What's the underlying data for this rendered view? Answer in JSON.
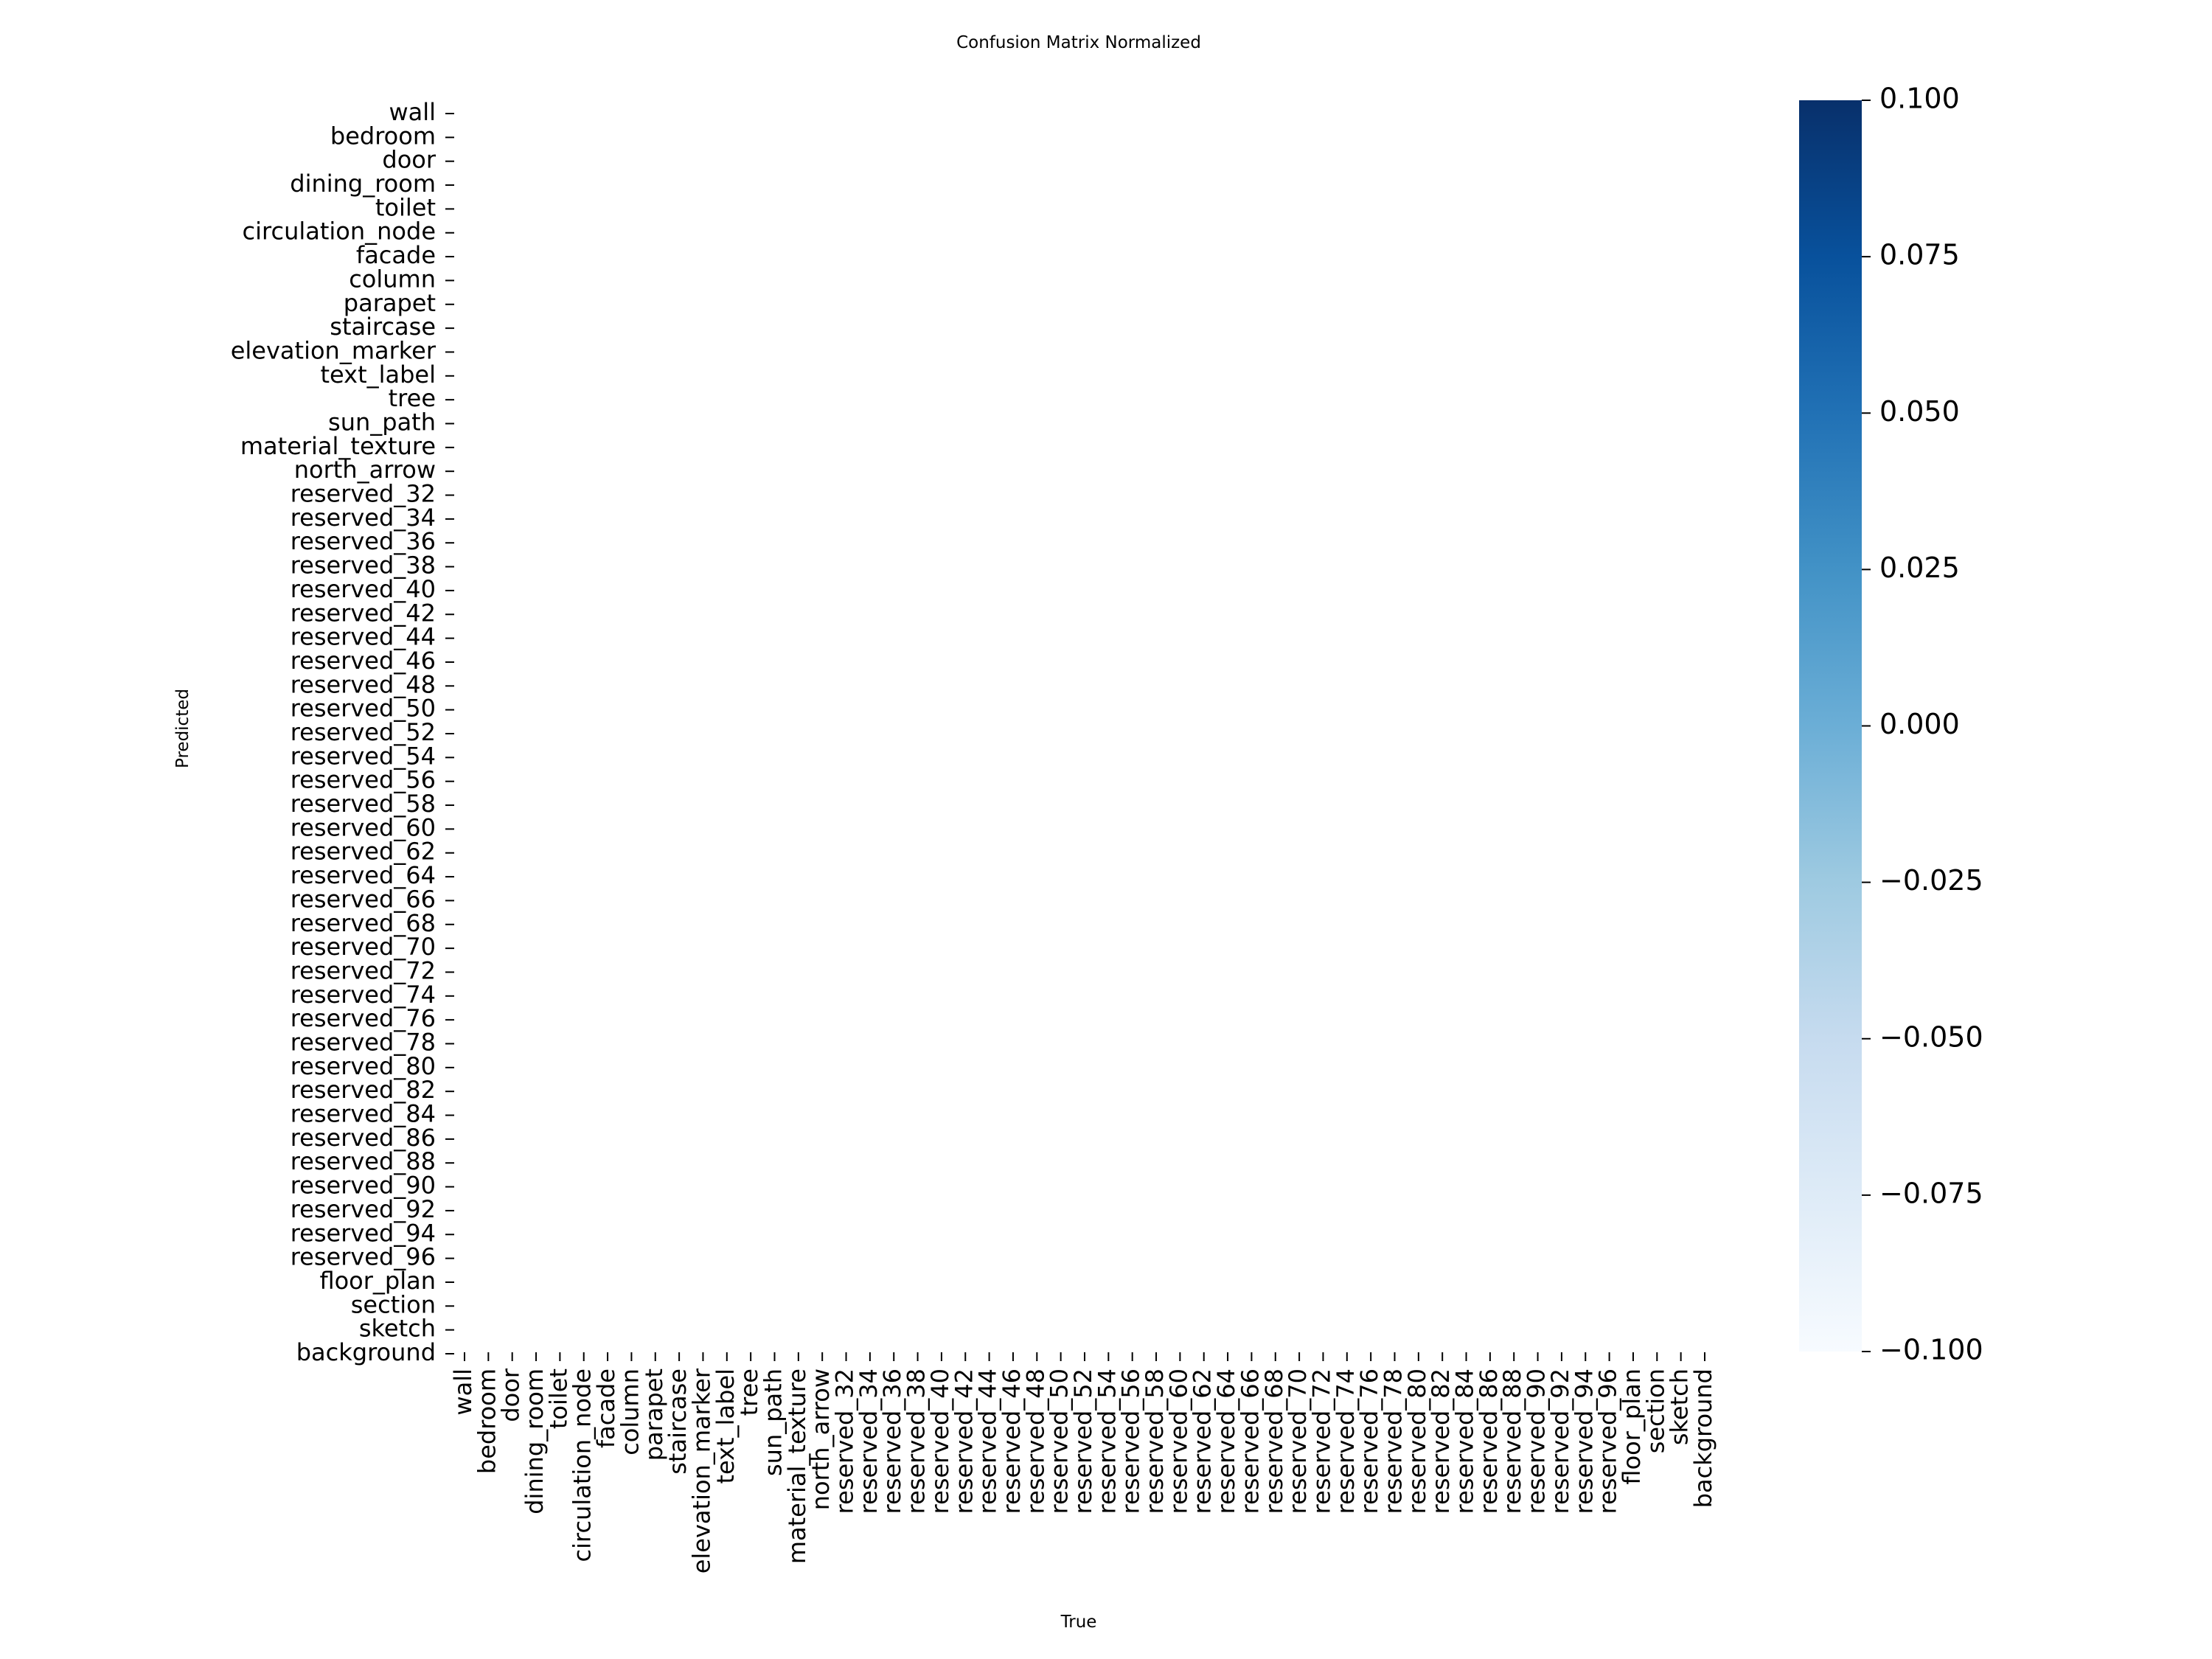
{
  "chart_data": {
    "type": "heatmap",
    "title": "Confusion Matrix Normalized",
    "xlabel": "True",
    "ylabel": "Predicted",
    "categories": [
      "wall",
      "bedroom",
      "door",
      "dining_room",
      "toilet",
      "circulation_node",
      "facade",
      "column",
      "parapet",
      "staircase",
      "elevation_marker",
      "text_label",
      "tree",
      "sun_path",
      "material_texture",
      "north_arrow",
      "reserved_32",
      "reserved_34",
      "reserved_36",
      "reserved_38",
      "reserved_40",
      "reserved_42",
      "reserved_44",
      "reserved_46",
      "reserved_48",
      "reserved_50",
      "reserved_52",
      "reserved_54",
      "reserved_56",
      "reserved_58",
      "reserved_60",
      "reserved_62",
      "reserved_64",
      "reserved_66",
      "reserved_68",
      "reserved_70",
      "reserved_72",
      "reserved_74",
      "reserved_76",
      "reserved_78",
      "reserved_80",
      "reserved_82",
      "reserved_84",
      "reserved_86",
      "reserved_88",
      "reserved_90",
      "reserved_92",
      "reserved_94",
      "reserved_96",
      "floor_plan",
      "section",
      "sketch",
      "background"
    ],
    "values": "all cells empty (not rendered)",
    "colorbar": {
      "colormap": "Blues",
      "vmin": -0.1,
      "vmax": 0.1,
      "ticks": [
        "0.100",
        "0.075",
        "0.050",
        "0.025",
        "0.000",
        "−0.025",
        "−0.050",
        "−0.075",
        "−0.100"
      ],
      "tick_values": [
        0.1,
        0.075,
        0.05,
        0.025,
        0.0,
        -0.025,
        -0.05,
        -0.075,
        -0.1
      ],
      "colors": [
        "#f7fbff",
        "#deebf7",
        "#c6dbef",
        "#9ecae1",
        "#6baed6",
        "#4292c6",
        "#2171b5",
        "#08519c",
        "#08306b"
      ]
    },
    "grid": false
  }
}
